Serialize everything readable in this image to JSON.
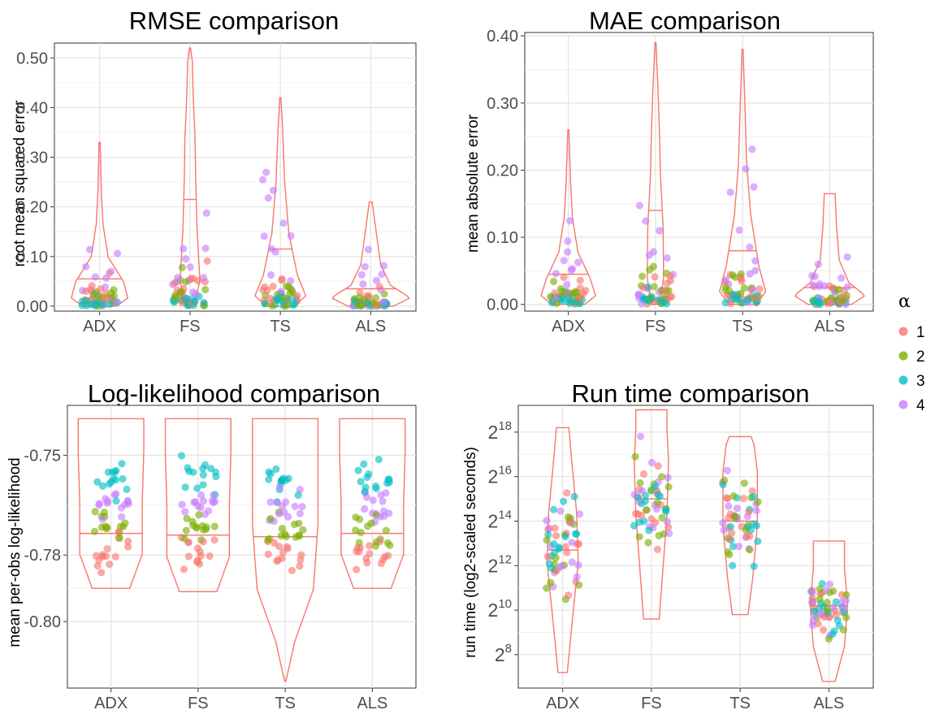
{
  "legend": {
    "title": "α",
    "items": [
      {
        "label": "1",
        "color": "#F8766D"
      },
      {
        "label": "2",
        "color": "#7CAE00"
      },
      {
        "label": "3",
        "color": "#00BFC4"
      },
      {
        "label": "4",
        "color": "#C77CFF"
      }
    ]
  },
  "chart_data": [
    {
      "type": "violin",
      "title": "RMSE comparison",
      "ylabel": "root mean squared error",
      "categories": [
        "ADX",
        "FS",
        "TS",
        "ALS"
      ],
      "ylim": [
        -0.01,
        0.53
      ],
      "yticks": [
        0.0,
        0.1,
        0.2,
        0.3,
        0.4,
        0.5
      ],
      "ytick_labels": [
        "0.00",
        "0.10",
        "0.20",
        "0.30",
        "0.40",
        "0.50"
      ],
      "medians": [
        0.055,
        0.215,
        0.115,
        0.035
      ],
      "ranges": [
        [
          0.0,
          0.33
        ],
        [
          0.0,
          0.52
        ],
        [
          0.0,
          0.42
        ],
        [
          0.0,
          0.21
        ]
      ],
      "violin_color": "#F8766D"
    },
    {
      "type": "violin",
      "title": "MAE comparison",
      "ylabel": "mean absolute error",
      "categories": [
        "ADX",
        "FS",
        "TS",
        "ALS"
      ],
      "ylim": [
        -0.01,
        0.405
      ],
      "yticks": [
        0.0,
        0.1,
        0.2,
        0.3,
        0.4
      ],
      "ytick_labels": [
        "0.00",
        "0.10",
        "0.20",
        "0.30",
        "0.40"
      ],
      "medians": [
        0.045,
        0.14,
        0.08,
        0.025
      ],
      "ranges": [
        [
          0.0,
          0.26
        ],
        [
          0.0,
          0.39
        ],
        [
          0.0,
          0.38
        ],
        [
          0.0,
          0.165
        ]
      ],
      "violin_color": "#F8766D"
    },
    {
      "type": "violin",
      "title": "Log-likelihood comparison",
      "ylabel": "mean per-obs log-likelihood",
      "categories": [
        "ADX",
        "FS",
        "TS",
        "ALS"
      ],
      "ylim": [
        -0.82,
        -0.735
      ],
      "yticks": [
        -0.75,
        -0.78,
        -0.8
      ],
      "ytick_labels": [
        "-0.75",
        "-0.78",
        "-0.80"
      ],
      "medians": [
        -0.7735,
        -0.774,
        -0.7745,
        -0.7735
      ],
      "ranges": [
        [
          -0.79,
          -0.739
        ],
        [
          -0.791,
          -0.739
        ],
        [
          -0.818,
          -0.739
        ],
        [
          -0.79,
          -0.739
        ]
      ],
      "violin_color": "#F8766D"
    },
    {
      "type": "violin",
      "title": "Run time comparison",
      "ylabel": "run time (log2-scaled seconds)",
      "categories": [
        "ADX",
        "FS",
        "TS",
        "ALS"
      ],
      "ylim_log2": [
        6.5,
        19.2
      ],
      "yticks_log2": [
        8,
        10,
        12,
        14,
        16,
        18
      ],
      "ytick_base": "2",
      "ytick_exponents": [
        "8",
        "10",
        "12",
        "14",
        "16",
        "18"
      ],
      "medians_log2": [
        12.7,
        15.0,
        14.0,
        10.2
      ],
      "ranges_log2": [
        [
          7.2,
          18.2
        ],
        [
          9.6,
          19.0
        ],
        [
          9.8,
          17.8
        ],
        [
          6.8,
          13.1
        ]
      ],
      "violin_color": "#F8766D"
    }
  ]
}
